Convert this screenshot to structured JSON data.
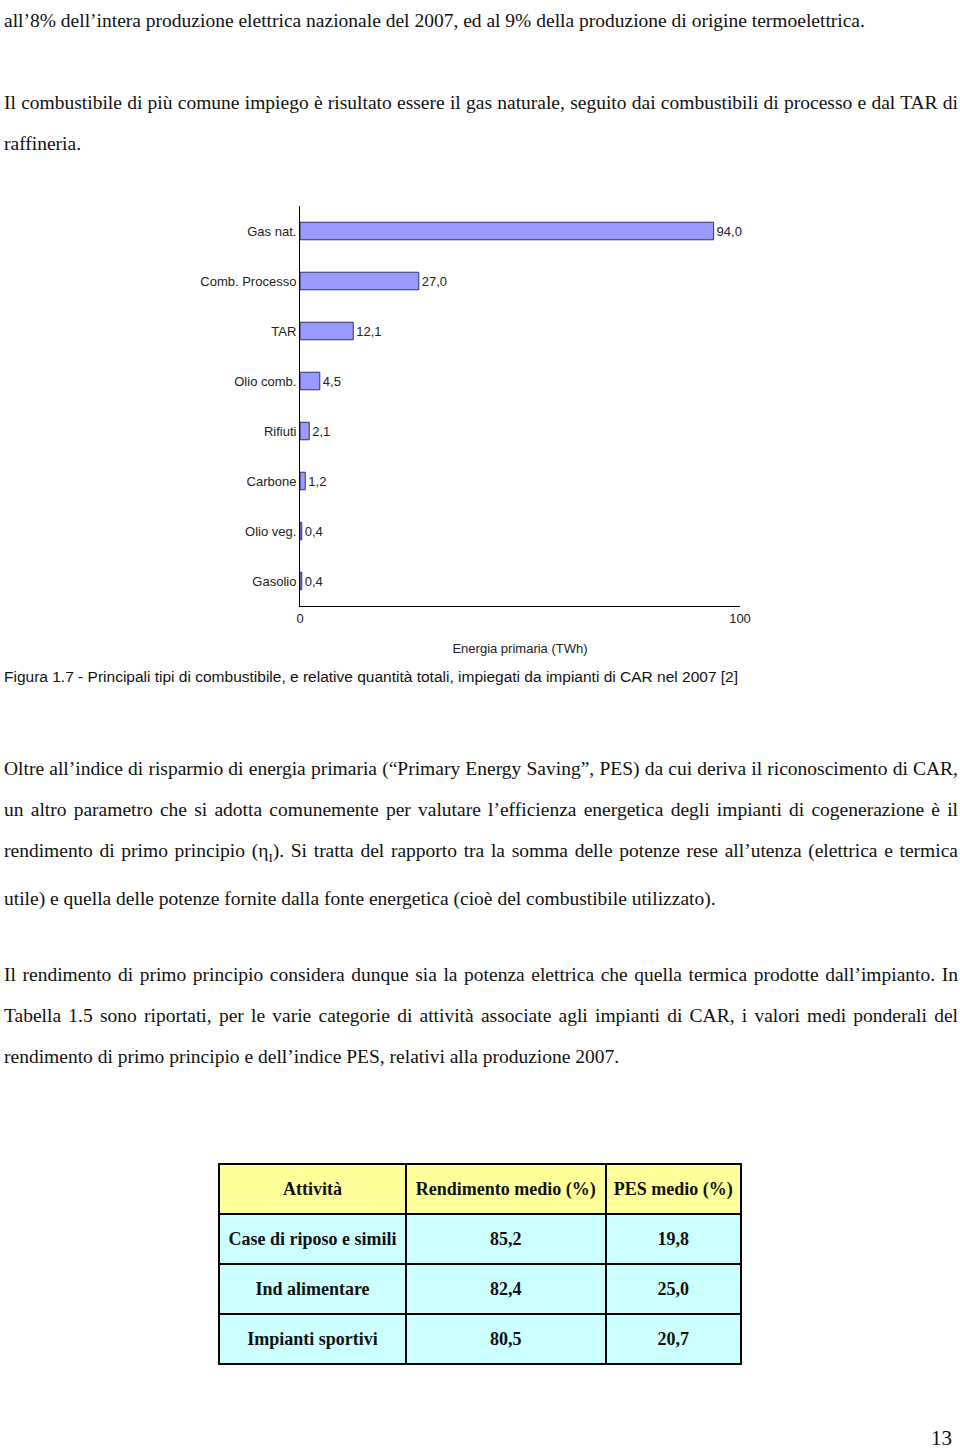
{
  "document": {
    "intro": "all’8% dell’intera produzione elettrica nazionale del 2007, ed al 9% della produzione di origine termoelettrica.",
    "paragraph_fuel": "Il combustibile di più comune impiego è risultato essere il gas naturale, seguito dai combustibili di processo e dal TAR di raffineria.",
    "caption": "Figura 1.7 - Principali tipi di combustibile, e relative quantità totali, impiegati da impianti di CAR nel 2007 [2]",
    "paragraph_efficiency": [
      {
        "text": "Oltre all’indice di risparmio di energia primaria (“Primary Energy Saving”, PES) da cui deriva il riconoscimento di CAR, un altro parametro che si adotta comunemente per valutare l’efficienza energetica degli impianti di cogenerazione è il rendimento di primo principio (η"
      },
      {
        "text": "I",
        "sub": true
      },
      {
        "text": "). Si tratta del rapporto tra la somma delle potenze rese all’utenza (elettrica e termica utile) e quella delle potenze fornite dalla fonte energetica (cioè del combustibile utilizzato)."
      }
    ],
    "paragraph_table": "Il rendimento di primo principio considera dunque sia la potenza elettrica che quella termica prodotte dall’impianto. In Tabella 1.5 sono riportati, per le varie categorie di attività associate agli impianti di CAR, i valori medi ponderali del rendimento di primo principio e dell’indice PES, relativi alla produzione 2007.",
    "table": {
      "header": [
        "Attività",
        "Rendimento medio (%)",
        "PES medio (%)"
      ],
      "rows": [
        [
          "Case di riposo e simili",
          "85,2",
          "19,8"
        ],
        [
          "Ind alimentare",
          "82,4",
          "25,0"
        ],
        [
          "Impianti sportivi",
          "80,5",
          "20,7"
        ]
      ]
    },
    "page_number": "13"
  },
  "chart_data": {
    "type": "bar",
    "orientation": "horizontal",
    "categories": [
      "Gas nat.",
      "Comb. Processo",
      "TAR",
      "Olio comb.",
      "Rifiuti",
      "Carbone",
      "Olio veg.",
      "Gasolio"
    ],
    "values": [
      94.0,
      27.0,
      12.1,
      4.5,
      2.1,
      1.2,
      0.4,
      0.4
    ],
    "value_labels": [
      "94,0",
      "27,0",
      "12,1",
      "4,5",
      "2,1",
      "1,2",
      "0,4",
      "0,4"
    ],
    "data_labels": true,
    "color": "#9999ff",
    "x_label": "Energia primaria (TWh)",
    "xlim": [
      0,
      100
    ],
    "xticks": [
      0,
      100
    ],
    "grid": false
  }
}
